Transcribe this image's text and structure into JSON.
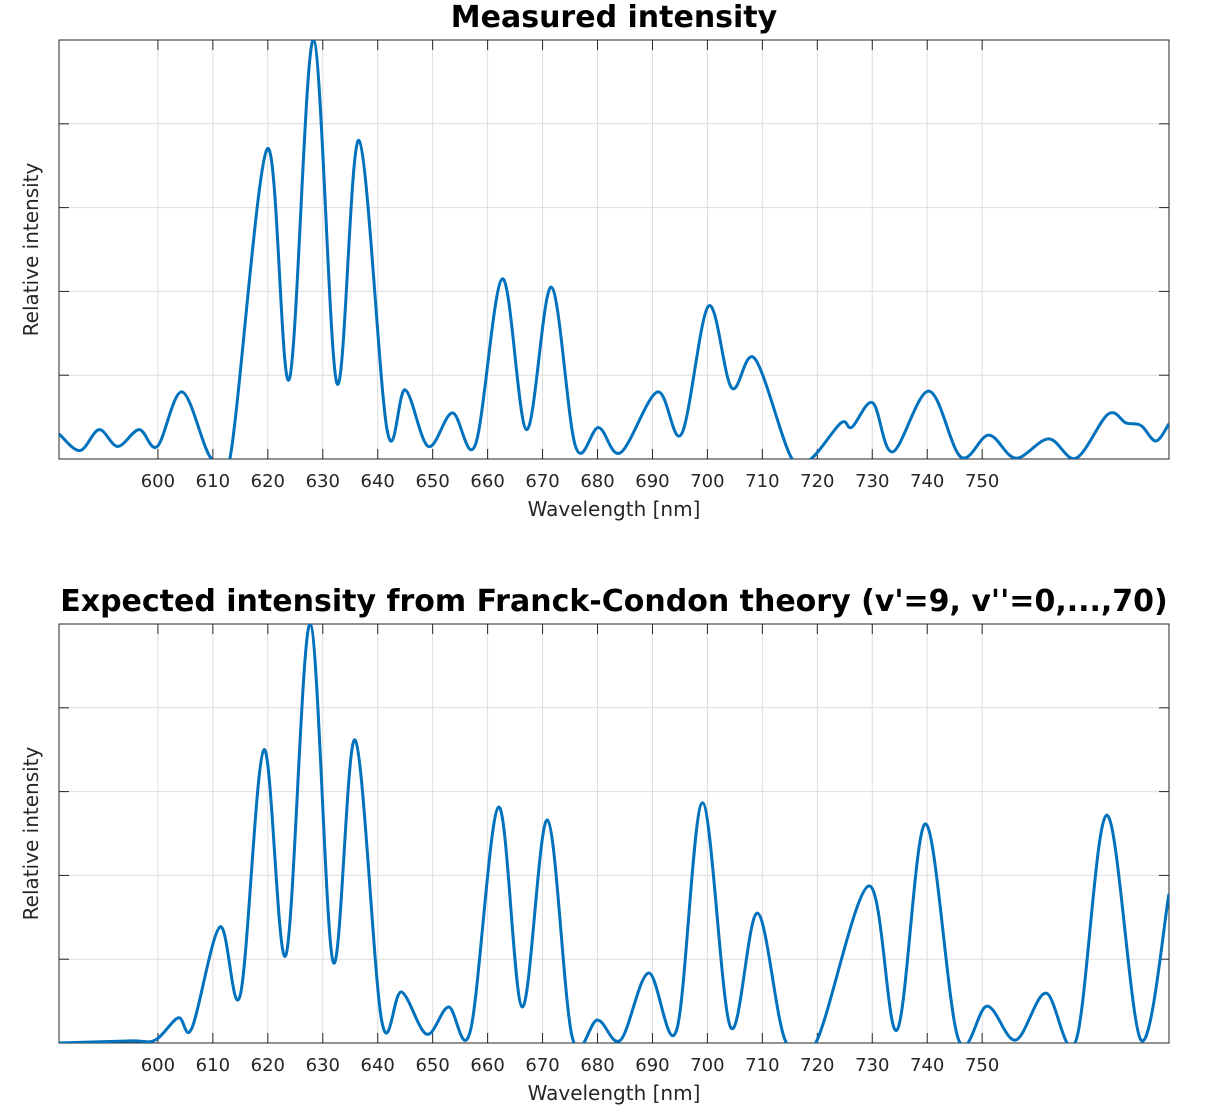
{
  "chart_data": [
    {
      "type": "line",
      "title": "Measured intensity",
      "xlabel": "Wavelength [nm]",
      "ylabel": "Relative intensity",
      "xlim": [
        582,
        784
      ],
      "xticks": [
        600,
        610,
        620,
        630,
        640,
        650,
        660,
        670,
        680,
        690,
        700,
        710,
        720,
        730,
        740,
        750
      ],
      "ylim": [
        0,
        1
      ],
      "yticks": [
        0,
        0.2,
        0.4,
        0.6,
        0.8,
        1
      ],
      "grid": true,
      "color": "#0072bd",
      "x": [
        582,
        585.8,
        589.3,
        592.7,
        596.6,
        599.9,
        604.4,
        609.5,
        613.1,
        619.9,
        623.9,
        628.3,
        632.6,
        636.6,
        641.7,
        645.0,
        649.2,
        653.6,
        657.8,
        662.7,
        667.1,
        671.6,
        676.0,
        680.2,
        684.2,
        690.9,
        695.3,
        700.2,
        704.4,
        708.6,
        715.2,
        718.8,
        724.3,
        726.3,
        730.1,
        733.7,
        740.3,
        746.1,
        751.2,
        756.1,
        762.1,
        767.1,
        772.9,
        776.2,
        778.9,
        781.6,
        784
      ],
      "values": [
        0.06,
        0.02,
        0.07,
        0.03,
        0.07,
        0.03,
        0.16,
        0.005,
        0,
        0.74,
        0.19,
        1.0,
        0.18,
        0.76,
        0.07,
        0.165,
        0.03,
        0.11,
        0.035,
        0.43,
        0.07,
        0.41,
        0.03,
        0.075,
        0.015,
        0.16,
        0.06,
        0.365,
        0.17,
        0.24,
        0.005,
        0,
        0.086,
        0.076,
        0.134,
        0.017,
        0.162,
        0.005,
        0.057,
        0.002,
        0.048,
        0.002,
        0.107,
        0.086,
        0.08,
        0.043,
        0.084
      ]
    },
    {
      "type": "line",
      "title": "Expected intensity from Franck-Condon theory (v'=9, v''=0,...,70)",
      "xlabel": "Wavelength [nm]",
      "ylabel": "Relative intensity",
      "xlim": [
        582,
        784
      ],
      "xticks": [
        600,
        610,
        620,
        630,
        640,
        650,
        660,
        670,
        680,
        690,
        700,
        710,
        720,
        730,
        740,
        750
      ],
      "ylim": [
        0,
        1
      ],
      "yticks": [
        0,
        0.2,
        0.4,
        0.6,
        0.8,
        1
      ],
      "grid": true,
      "color": "#0072bd",
      "x": [
        582,
        594.9,
        599.5,
        603.7,
        606.2,
        611.3,
        615.0,
        619.3,
        623.3,
        627.7,
        631.9,
        635.9,
        640.7,
        644.3,
        648.9,
        652.9,
        656.9,
        662.0,
        666.3,
        670.9,
        675.4,
        680.0,
        684.2,
        689.3,
        694.4,
        699.1,
        704.2,
        709.1,
        714.2,
        719.7,
        729.4,
        734.5,
        739.7,
        745.6,
        750.9,
        756.1,
        761.6,
        767.1,
        772.7,
        778.9,
        784
      ],
      "values": [
        0,
        0.005,
        0.007,
        0.06,
        0.036,
        0.277,
        0.115,
        0.7,
        0.21,
        1.0,
        0.193,
        0.723,
        0.055,
        0.122,
        0.021,
        0.086,
        0.031,
        0.563,
        0.086,
        0.532,
        0.014,
        0.055,
        0.007,
        0.167,
        0.031,
        0.573,
        0.038,
        0.31,
        0.005,
        0,
        0.375,
        0.031,
        0.523,
        0.012,
        0.088,
        0.007,
        0.119,
        0.007,
        0.544,
        0.007,
        0.356
      ]
    }
  ]
}
